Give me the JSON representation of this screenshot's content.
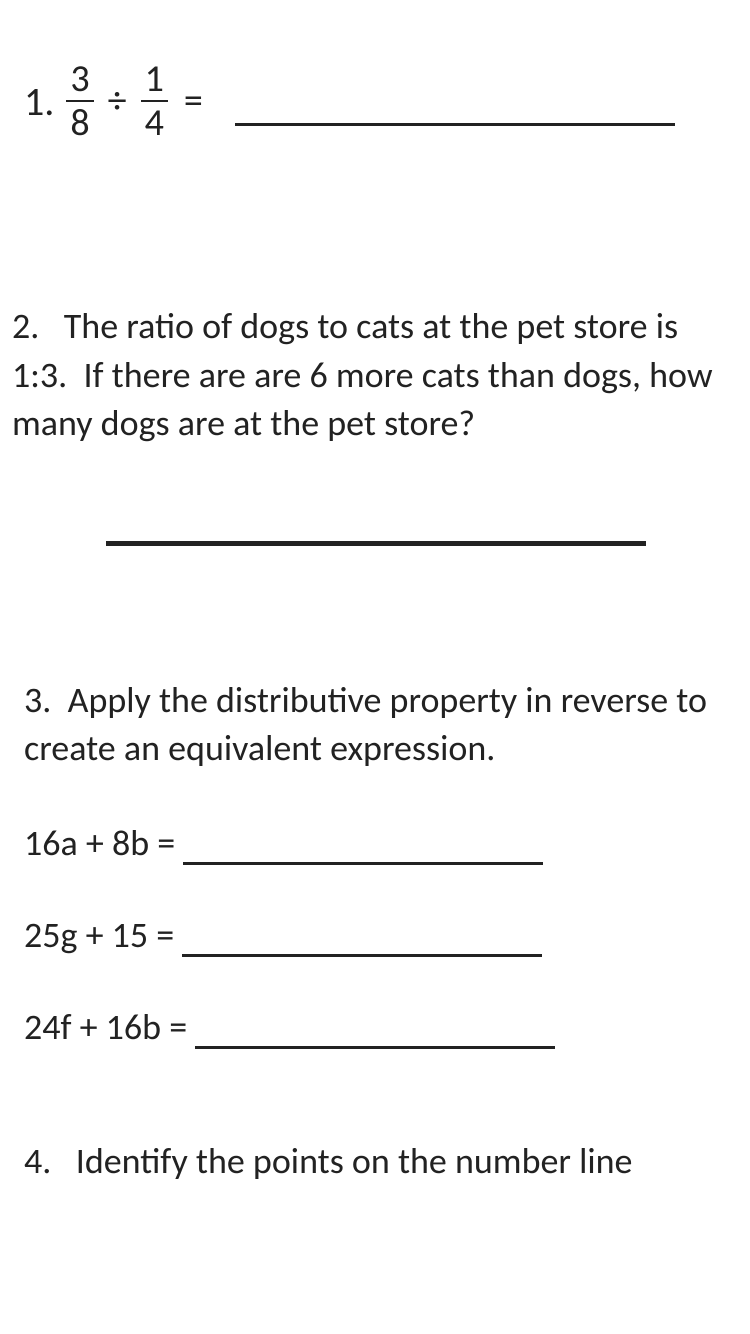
{
  "q1": {
    "number": "1.",
    "frac1_num": "3",
    "frac1_den": "8",
    "divide": "÷",
    "frac2_num": "1",
    "frac2_den": "4",
    "equals": "="
  },
  "q2": {
    "text": "2.   The ratio of dogs to cats at the pet store is 1:3.  If there are are 6 more cats than dogs, how many dogs are at the pet store?"
  },
  "q3": {
    "text": "3.  Apply the distributive property in reverse to create an equivalent expression.",
    "expr1": "16a + 8b =",
    "expr2": "25g + 15 =",
    "expr3": "24f + 16b ="
  },
  "q4": {
    "text": "4.   Identify the points on the number line"
  }
}
